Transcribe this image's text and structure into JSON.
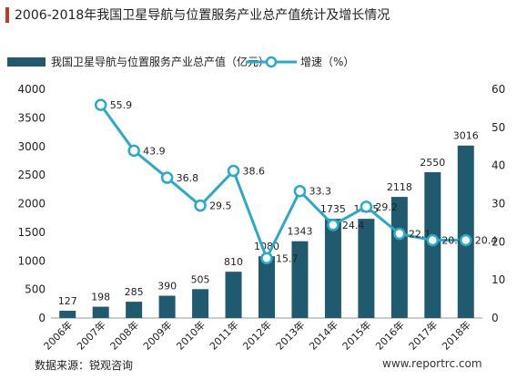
{
  "title": "2006-2018年我国卫星导航与位置服务产业总产值统计及增长情况",
  "source": "数据来源：锐观咨询",
  "watermark": "www.reportrc.com",
  "colors": {
    "bar": "#1f5a6e",
    "line": "#2aa9c9",
    "accent": "#c0392b"
  },
  "chart_data": {
    "type": "bar",
    "categories": [
      "2006年",
      "2007年",
      "2008年",
      "2009年",
      "2010年",
      "2011年",
      "2012年",
      "2013年",
      "2014年",
      "2015年",
      "2016年",
      "2017年",
      "2018年"
    ],
    "series": [
      {
        "name": "我国卫星导航与位置服务产业总产值（亿元）",
        "type": "bar",
        "axis": "left",
        "values": [
          127,
          198,
          285,
          390,
          505,
          810,
          1080,
          1343,
          1735,
          1735,
          2118,
          2550,
          3016
        ]
      },
      {
        "name": "增速（%）",
        "type": "line",
        "axis": "right",
        "values": [
          null,
          55.9,
          43.9,
          36.8,
          29.5,
          38.6,
          15.7,
          33.3,
          24.4,
          29.2,
          22.1,
          20.4,
          20.4
        ]
      }
    ],
    "y_left": {
      "range": [
        0,
        4000
      ],
      "ticks": [
        0,
        500,
        1000,
        1500,
        2000,
        2500,
        3000,
        3500,
        4000
      ]
    },
    "y_right": {
      "range": [
        0,
        60
      ],
      "ticks": [
        0,
        10,
        20,
        30,
        40,
        50,
        60
      ]
    },
    "legend_position": "top-left",
    "grid": false
  }
}
